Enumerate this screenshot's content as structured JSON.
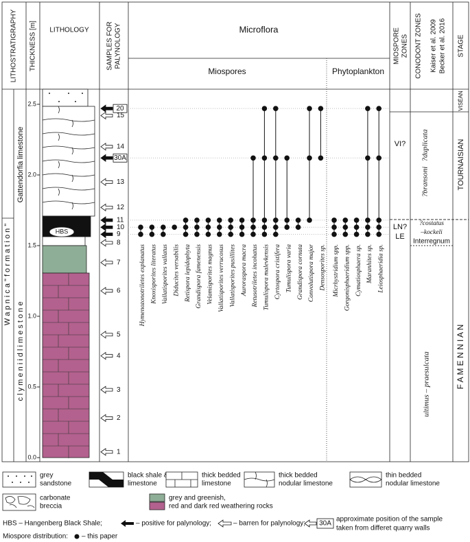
{
  "headers": {
    "lithostratigraphy": "LITHOSTRATIGRAPHY",
    "thickness": "THICKNESS [m]",
    "lithology": "LITHOLOGY",
    "samples": [
      "SAMPLES FOR",
      "PALYNOLOGY"
    ],
    "microflora": "Microflora",
    "miospores": "Miospores",
    "phytoplankton": "Phytoplankton",
    "miospore_zones": [
      "MIOSPORE",
      "ZONES"
    ],
    "conodont_zones": "CONODONT ZONES",
    "conodont_refs": [
      "Kaiser et al. 2009",
      "Becker et al. 2016"
    ],
    "stage": "STAGE"
  },
  "lithostratigraphy": {
    "formation": "W a p n i c a   \" f o r m a t i o n \"",
    "upper": "Gattendorfia limestone",
    "lower": "c l y m e n i i d   l i m e s t o n e"
  },
  "thickness_axis": {
    "ylim": [
      0,
      2.5
    ],
    "ticks": [
      {
        "value": 0,
        "label": "0.0"
      },
      {
        "value": 0.5,
        "label": "0.5"
      },
      {
        "value": 1,
        "label": "1.0"
      },
      {
        "value": 1.5,
        "label": "1.5"
      },
      {
        "value": 2,
        "label": "2.0"
      },
      {
        "value": 2.5,
        "label": "2.5"
      }
    ]
  },
  "lithology_label": "HBS",
  "samples": [
    {
      "label": "1",
      "depth_m": 0.04,
      "positive": false,
      "approximate": false
    },
    {
      "label": "2",
      "depth_m": 0.28,
      "positive": false,
      "approximate": false
    },
    {
      "label": "3",
      "depth_m": 0.48,
      "positive": false,
      "approximate": false
    },
    {
      "label": "4",
      "depth_m": 0.72,
      "positive": false,
      "approximate": false
    },
    {
      "label": "5",
      "depth_m": 0.87,
      "positive": false,
      "approximate": false
    },
    {
      "label": "6",
      "depth_m": 1.18,
      "positive": false,
      "approximate": false
    },
    {
      "label": "7",
      "depth_m": 1.38,
      "positive": false,
      "approximate": false
    },
    {
      "label": "8",
      "depth_m": 1.52,
      "positive": false,
      "approximate": false
    },
    {
      "label": "9",
      "depth_m": 1.58,
      "positive": true,
      "approximate": false
    },
    {
      "label": "10",
      "depth_m": 1.63,
      "positive": true,
      "approximate": false
    },
    {
      "label": "11",
      "depth_m": 1.68,
      "positive": true,
      "approximate": false
    },
    {
      "label": "12",
      "depth_m": 1.77,
      "positive": false,
      "approximate": false
    },
    {
      "label": "13",
      "depth_m": 1.95,
      "positive": false,
      "approximate": false
    },
    {
      "label": "30A",
      "depth_m": 2.12,
      "positive": true,
      "approximate": true
    },
    {
      "label": "14",
      "depth_m": 2.2,
      "positive": false,
      "approximate": false
    },
    {
      "label": "15",
      "depth_m": 2.42,
      "positive": false,
      "approximate": false
    },
    {
      "label": "20",
      "depth_m": 2.47,
      "positive": true,
      "approximate": true
    }
  ],
  "miospores": [
    {
      "name": "Hymenozonotriletes explanatus",
      "samples": [
        "9",
        "10"
      ]
    },
    {
      "name": "Knoxisporites literatus",
      "samples": [
        "9",
        "10"
      ]
    },
    {
      "name": "Vallatisporites vallatus",
      "samples": [
        "9",
        "10"
      ]
    },
    {
      "name": "Diducites versabilis",
      "samples": [
        "10"
      ]
    },
    {
      "name": "Retispora lepidophyta",
      "samples": [
        "9",
        "10",
        "11"
      ]
    },
    {
      "name": "Grandispora famenensis",
      "samples": [
        "9",
        "10",
        "11"
      ]
    },
    {
      "name": "Velamisporites magnus",
      "samples": [
        "9",
        "10",
        "11"
      ]
    },
    {
      "name": "Vallatisporites verrucosus",
      "samples": [
        "9",
        "10",
        "11"
      ]
    },
    {
      "name": "Vallatisporites pusillites",
      "samples": [
        "9",
        "10",
        "11"
      ]
    },
    {
      "name": "Auroraspora macra",
      "samples": [
        "9",
        "10",
        "11"
      ]
    },
    {
      "name": "Retusotriletes incohatus",
      "samples": [
        "9",
        "10",
        "11",
        "30A"
      ]
    },
    {
      "name": "Tumulispora malevkensis",
      "samples": [
        "9",
        "10",
        "11",
        "30A",
        "20"
      ]
    },
    {
      "name": "Cyrtospora cristifera",
      "samples": [
        "9",
        "10",
        "11",
        "30A",
        "20"
      ]
    },
    {
      "name": "Tumulispora varia",
      "samples": [
        "10",
        "11",
        "30A"
      ]
    },
    {
      "name": "Grandispora cornuta",
      "samples": [
        "10",
        "11"
      ]
    },
    {
      "name": "Convolutispora major",
      "samples": [
        "11",
        "30A",
        "20"
      ]
    },
    {
      "name": "Densosporites sp.",
      "samples": [
        "30A",
        "20"
      ]
    }
  ],
  "phytoplankton": [
    {
      "name": "Micrhystridium spp.",
      "samples": [
        "9",
        "10",
        "11"
      ]
    },
    {
      "name": "Gorgonisphaeridium spp.",
      "samples": [
        "9",
        "10",
        "11"
      ]
    },
    {
      "name": "Cymatiosphaera sp.",
      "samples": [
        "9",
        "10",
        "11"
      ]
    },
    {
      "name": "Maranhites sp.",
      "samples": [
        "9",
        "10",
        "11",
        "30A",
        "20"
      ]
    },
    {
      "name": "Leiosphaeridia sp.",
      "samples": [
        "9",
        "10",
        "11",
        "30A",
        "20"
      ]
    }
  ],
  "miospore_zones": {
    "upper": "VI?",
    "lower": [
      "LN?",
      "LE"
    ]
  },
  "conodont_zones": {
    "duplicata": "?duplicata",
    "bransoni": "?bransoni",
    "costatus": [
      "?costatus",
      "–kockeli"
    ],
    "interregnum": "Interregnum",
    "ultimus": "ultimus – praesulcata"
  },
  "stages": {
    "visean": "VISÉAN",
    "tournaisian": "TOURNAISIAN",
    "famennian": "F A M E N N I A N"
  },
  "legend": {
    "sandstone": [
      "grey",
      "sandstone"
    ],
    "black_shale": [
      "black shale &",
      "limestone"
    ],
    "thick_limestone": [
      "thick bedded",
      "limestone"
    ],
    "thick_nodular": [
      "thick bedded",
      "nodular limestone"
    ],
    "thin_nodular": [
      "thin bedded",
      "nodular limestone"
    ],
    "breccia": [
      "carbonate",
      "breccia"
    ],
    "weathering": [
      "grey and greenish,",
      "red and dark red weathering rocks"
    ]
  },
  "notes": {
    "hbs": "HBS – Hangenberg Black Shale;",
    "positive": "– positive for palynology;",
    "barren": "– barren for palynology;",
    "box_label": "30A",
    "approximate": [
      "approximate position of the sample",
      "taken from differet quarry walls"
    ],
    "distribution": "Miospore distribution:",
    "this_paper": "– this paper"
  }
}
